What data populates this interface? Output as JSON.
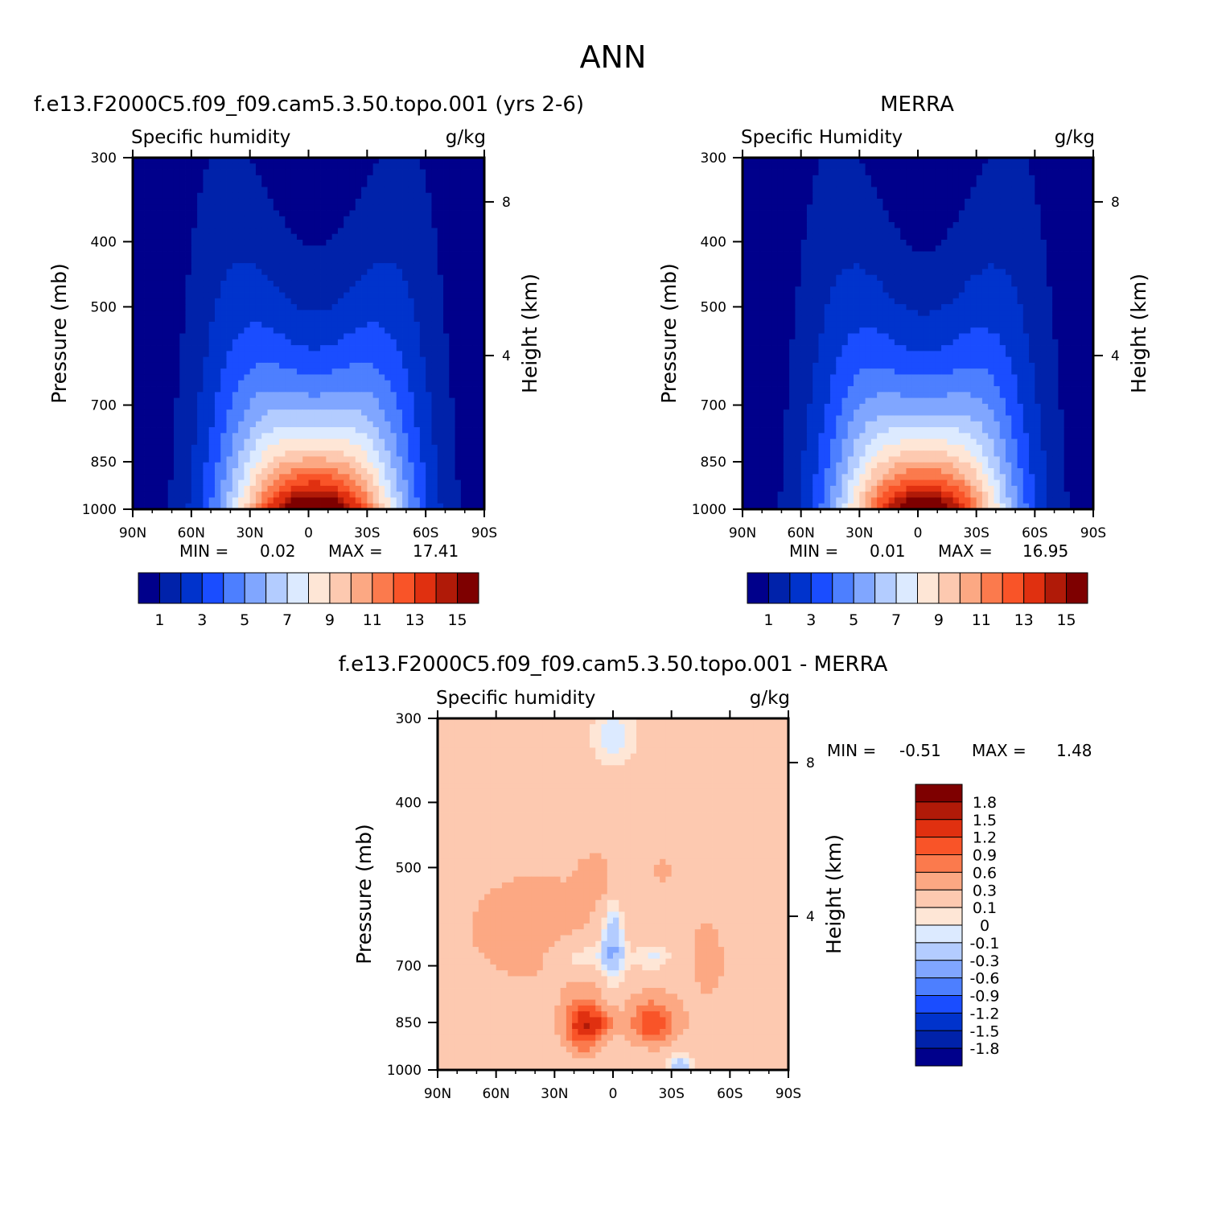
{
  "figure_title": "ANN",
  "colors": {
    "sequential": [
      "#00008b",
      "#0022aa",
      "#0033cc",
      "#1a4dff",
      "#4d7fff",
      "#80a6ff",
      "#b3ccff",
      "#dceaff",
      "#fee6d6",
      "#fdc9b0",
      "#fca883",
      "#fb7a4d",
      "#f95428",
      "#e03010",
      "#b01a08",
      "#7e0000"
    ],
    "diverging": [
      "#00008b",
      "#0022aa",
      "#0033cc",
      "#1a4dff",
      "#4d7fff",
      "#80a6ff",
      "#b3ccff",
      "#dceaff",
      "#fee6d6",
      "#fdc9b0",
      "#fca883",
      "#fb7a4d",
      "#f95428",
      "#e03010",
      "#b01a08",
      "#7e0000"
    ]
  },
  "chart_data": [
    {
      "type": "contour",
      "id": "model",
      "title": "f.e13.F2000C5.f09_f09.cam5.3.50.topo.001 (yrs 2-6)",
      "variable_label": "Specific humidity",
      "units_label": "g/kg",
      "xlabel": "",
      "ylabel": "Pressure (mb)",
      "y2label": "Height (km)",
      "x_ticks": [
        "90N",
        "60N",
        "30N",
        "0",
        "30S",
        "60S",
        "90S"
      ],
      "x_range": [
        90,
        -90
      ],
      "y_ticks": [
        300,
        400,
        500,
        700,
        850,
        1000
      ],
      "y_range": [
        300,
        1000
      ],
      "y2_ticks": [
        8,
        4
      ],
      "min_label": "MIN =",
      "min_value": "0.02",
      "max_label": "MAX =",
      "max_value": "17.41",
      "peak_value": 17.41,
      "peak_lat": -3,
      "colorbar": {
        "orientation": "horizontal",
        "levels": [
          1,
          2,
          3,
          4,
          5,
          6,
          7,
          8,
          9,
          10,
          11,
          12,
          13,
          14,
          15
        ],
        "labels": [
          "1",
          "3",
          "5",
          "7",
          "9",
          "11",
          "13",
          "15"
        ]
      }
    },
    {
      "type": "contour",
      "id": "obs",
      "title": "MERRA",
      "variable_label": "Specific Humidity",
      "units_label": "g/kg",
      "xlabel": "",
      "ylabel": "Pressure (mb)",
      "y2label": "Height (km)",
      "x_ticks": [
        "90N",
        "60N",
        "30N",
        "0",
        "30S",
        "60S",
        "90S"
      ],
      "x_range": [
        90,
        -90
      ],
      "y_ticks": [
        300,
        400,
        500,
        700,
        850,
        1000
      ],
      "y_range": [
        300,
        1000
      ],
      "y2_ticks": [
        8,
        4
      ],
      "min_label": "MIN =",
      "min_value": "0.01",
      "max_label": "MAX =",
      "max_value": "16.95",
      "peak_value": 16.95,
      "peak_lat": -3,
      "colorbar": {
        "orientation": "horizontal",
        "levels": [
          1,
          2,
          3,
          4,
          5,
          6,
          7,
          8,
          9,
          10,
          11,
          12,
          13,
          14,
          15
        ],
        "labels": [
          "1",
          "3",
          "5",
          "7",
          "9",
          "11",
          "13",
          "15"
        ]
      }
    },
    {
      "type": "contour",
      "id": "diff",
      "title": "f.e13.F2000C5.f09_f09.cam5.3.50.topo.001 - MERRA",
      "variable_label": "Specific humidity",
      "units_label": "g/kg",
      "xlabel": "",
      "ylabel": "Pressure (mb)",
      "y2label": "Height (km)",
      "x_ticks": [
        "90N",
        "60N",
        "30N",
        "0",
        "30S",
        "60S",
        "90S"
      ],
      "x_range": [
        90,
        -90
      ],
      "y_ticks": [
        300,
        400,
        500,
        700,
        850,
        1000
      ],
      "y_range": [
        300,
        1000
      ],
      "y2_ticks": [
        8,
        4
      ],
      "min_label": "MIN =",
      "min_value": "-0.51",
      "max_label": "MAX =",
      "max_value": "1.48",
      "colorbar": {
        "orientation": "vertical",
        "levels": [
          -1.8,
          -1.5,
          -1.2,
          -0.9,
          -0.6,
          -0.3,
          -0.1,
          0,
          0.1,
          0.3,
          0.6,
          0.9,
          1.2,
          1.5,
          1.8
        ],
        "labels": [
          "1.8",
          "1.5",
          "1.2",
          "0.9",
          "0.6",
          "0.3",
          "0.1",
          "0",
          "-0.1",
          "-0.3",
          "-0.6",
          "-0.9",
          "-1.2",
          "-1.5",
          "-1.8"
        ]
      }
    }
  ]
}
